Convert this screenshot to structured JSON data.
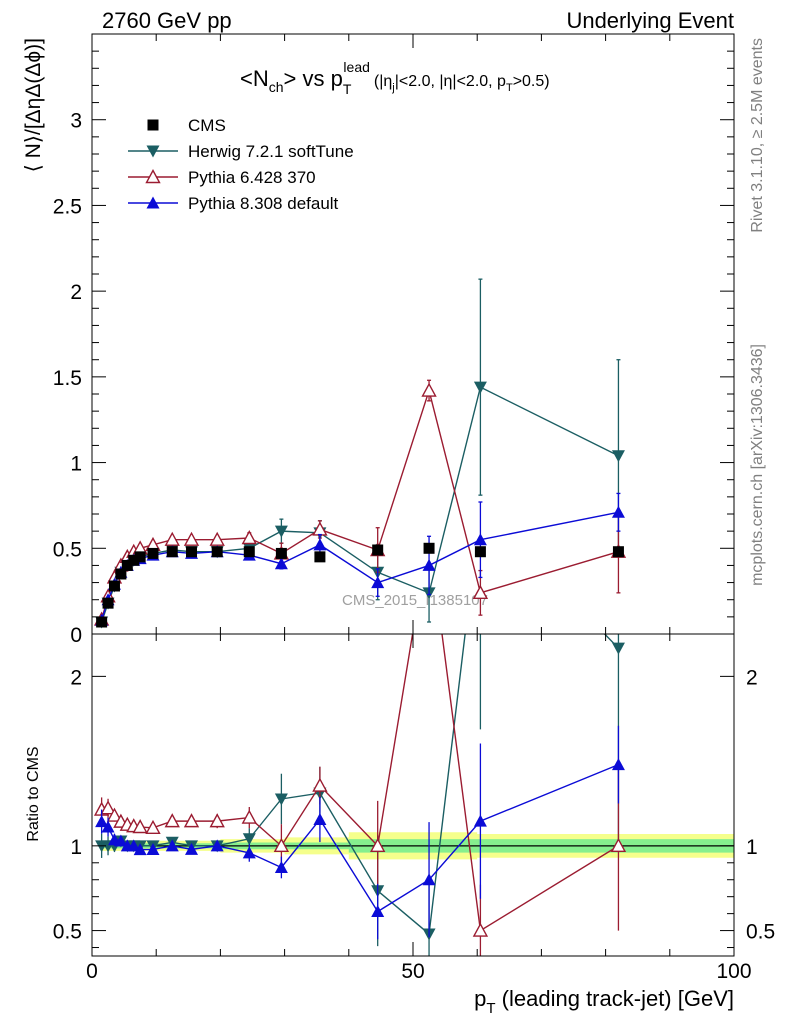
{
  "header": {
    "left": "2760 GeV pp",
    "right": "Underlying Event"
  },
  "side_labels": {
    "rivet": "Rivet 3.1.10, ≥ 2.5M events",
    "mcplots": "mcplots.cern.ch [arXiv:1306.3436]"
  },
  "watermark": "CMS_2015_I1385107",
  "chart_data": {
    "type": "line",
    "title": {
      "main_pre": "<N",
      "main_sub": "ch",
      "main_mid": "> vs p",
      "main_sub2": "T",
      "main_sup": "lead",
      "cuts_a": "(|η",
      "cuts_sub": "j",
      "cuts_b": "|<2.0, |η|<2.0, p",
      "cuts_sub2": "T",
      "cuts_c": ">0.5)"
    },
    "ylabel": "⟨ N⟩/[ΔηΔ(Δϕ)]",
    "ratio_ylabel": "Ratio to CMS",
    "xlabel_main": "p",
    "xlabel_sub": "T",
    "xlabel_rest": " (leading track-jet) [GeV]",
    "xlim": [
      0,
      100
    ],
    "ylim": [
      0,
      3.5
    ],
    "ratio_ylim": [
      0.35,
      2.25
    ],
    "x_ticks": [
      "0",
      "50",
      "100"
    ],
    "y_ticks": [
      "0",
      "0.5",
      "1",
      "1.5",
      "2",
      "2.5",
      "3"
    ],
    "ratio_y_ticks": [
      "0.5",
      "1",
      "2"
    ],
    "x": [
      1.5,
      2.5,
      3.5,
      4.5,
      5.5,
      6.5,
      7.5,
      9.5,
      12.5,
      15.5,
      19.5,
      24.5,
      29.5,
      35.5,
      44.5,
      52.5,
      60.5,
      82.0
    ],
    "cms": {
      "name": "CMS",
      "color": "#000000",
      "values": [
        0.07,
        0.18,
        0.28,
        0.35,
        0.4,
        0.43,
        0.45,
        0.47,
        0.48,
        0.48,
        0.48,
        0.48,
        0.47,
        0.45,
        0.49,
        0.5,
        0.48,
        0.48
      ]
    },
    "band_ratio": [
      [
        1.5,
        0.03
      ],
      [
        12,
        0.03
      ],
      [
        20,
        0.04
      ],
      [
        30,
        0.05
      ],
      [
        40,
        0.08
      ],
      [
        60,
        0.07
      ],
      [
        100,
        0.07
      ]
    ],
    "band_inner_ratio": [
      [
        1.5,
        0.015
      ],
      [
        20,
        0.02
      ],
      [
        40,
        0.04
      ],
      [
        100,
        0.04
      ]
    ],
    "series": [
      {
        "name": "Herwig 7.2.1 softTune",
        "color": "#1b5e63",
        "marker": "triangle-down",
        "values": [
          0.07,
          0.18,
          0.28,
          0.36,
          0.4,
          0.43,
          0.45,
          0.47,
          0.49,
          0.48,
          0.48,
          0.5,
          0.6,
          0.59,
          0.36,
          0.24,
          1.44,
          1.04
        ],
        "errors": [
          0.005,
          0.01,
          0.01,
          0.01,
          0.01,
          0.01,
          0.01,
          0.01,
          0.01,
          0.01,
          0.015,
          0.03,
          0.07,
          0.07,
          0.16,
          0.17,
          0.63,
          0.56
        ]
      },
      {
        "name": "Pythia 6.428 370",
        "color": "#9b1c31",
        "marker": "triangle-up-open",
        "values": [
          0.085,
          0.22,
          0.33,
          0.4,
          0.45,
          0.48,
          0.5,
          0.52,
          0.55,
          0.55,
          0.55,
          0.56,
          0.47,
          0.61,
          0.49,
          1.42,
          0.24,
          0.48
        ],
        "errors": [
          0.005,
          0.01,
          0.01,
          0.01,
          0.01,
          0.01,
          0.01,
          0.015,
          0.015,
          0.015,
          0.02,
          0.03,
          0.06,
          0.05,
          0.13,
          0.06,
          0.13,
          0.24
        ]
      },
      {
        "name": "Pythia 8.308 default",
        "color": "#0b0bd6",
        "marker": "triangle-up",
        "values": [
          0.08,
          0.2,
          0.29,
          0.36,
          0.4,
          0.43,
          0.44,
          0.46,
          0.48,
          0.47,
          0.48,
          0.46,
          0.41,
          0.52,
          0.3,
          0.4,
          0.55,
          0.71
        ],
        "errors": [
          0.005,
          0.01,
          0.01,
          0.01,
          0.01,
          0.01,
          0.01,
          0.01,
          0.01,
          0.01,
          0.015,
          0.025,
          0.03,
          0.06,
          0.08,
          0.17,
          0.22,
          0.11
        ]
      }
    ]
  }
}
